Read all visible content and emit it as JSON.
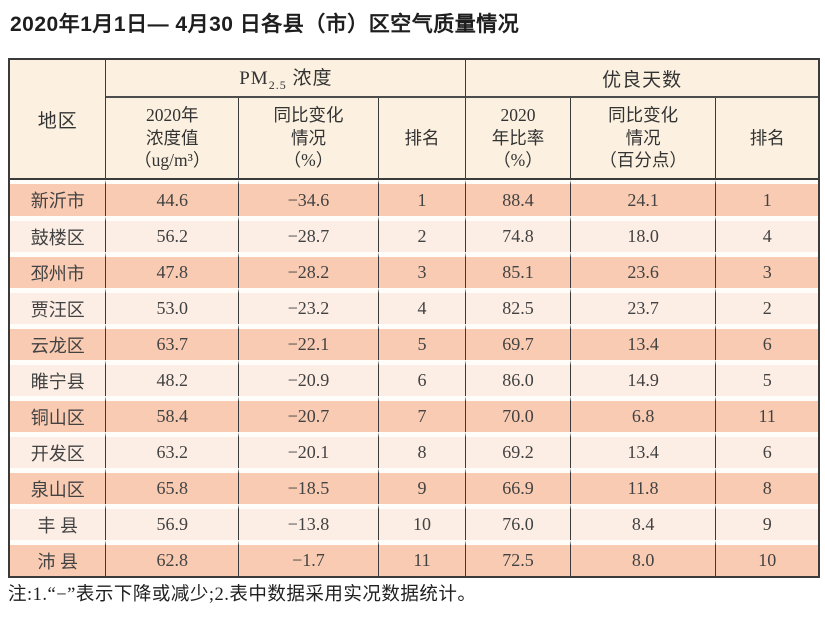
{
  "title": "2020年1月1日— 4月30 日各县（市）区空气质量情况",
  "table": {
    "region_header": "地区",
    "pm_group": {
      "prefix": "PM",
      "sub": "2.5",
      "suffix": " 浓度"
    },
    "days_group": "优良天数",
    "subheaders": [
      "2020年\n浓度值\n（ug/m³）",
      "同比变化\n情况\n（%）",
      "排名",
      "2020\n年比率\n（%）",
      "同比变化\n情况\n（百分点）",
      "排名"
    ],
    "columns": [
      "region",
      "pm_value",
      "pm_change",
      "pm_rank",
      "days_ratio",
      "days_change",
      "days_rank"
    ],
    "rows": [
      {
        "region": "新沂市",
        "pm_value": "44.6",
        "pm_change": "−34.6",
        "pm_rank": "1",
        "days_ratio": "88.4",
        "days_change": "24.1",
        "days_rank": "1"
      },
      {
        "region": "鼓楼区",
        "pm_value": "56.2",
        "pm_change": "−28.7",
        "pm_rank": "2",
        "days_ratio": "74.8",
        "days_change": "18.0",
        "days_rank": "4"
      },
      {
        "region": "邳州市",
        "pm_value": "47.8",
        "pm_change": "−28.2",
        "pm_rank": "3",
        "days_ratio": "85.1",
        "days_change": "23.6",
        "days_rank": "3"
      },
      {
        "region": "贾汪区",
        "pm_value": "53.0",
        "pm_change": "−23.2",
        "pm_rank": "4",
        "days_ratio": "82.5",
        "days_change": "23.7",
        "days_rank": "2"
      },
      {
        "region": "云龙区",
        "pm_value": "63.7",
        "pm_change": "−22.1",
        "pm_rank": "5",
        "days_ratio": "69.7",
        "days_change": "13.4",
        "days_rank": "6"
      },
      {
        "region": "睢宁县",
        "pm_value": "48.2",
        "pm_change": "−20.9",
        "pm_rank": "6",
        "days_ratio": "86.0",
        "days_change": "14.9",
        "days_rank": "5"
      },
      {
        "region": "铜山区",
        "pm_value": "58.4",
        "pm_change": "−20.7",
        "pm_rank": "7",
        "days_ratio": "70.0",
        "days_change": "6.8",
        "days_rank": "11"
      },
      {
        "region": "开发区",
        "pm_value": "63.2",
        "pm_change": "−20.1",
        "pm_rank": "8",
        "days_ratio": "69.2",
        "days_change": "13.4",
        "days_rank": "6"
      },
      {
        "region": "泉山区",
        "pm_value": "65.8",
        "pm_change": "−18.5",
        "pm_rank": "9",
        "days_ratio": "66.9",
        "days_change": "11.8",
        "days_rank": "8"
      },
      {
        "region": "丰 县",
        "pm_value": "56.9",
        "pm_change": "−13.8",
        "pm_rank": "10",
        "days_ratio": "76.0",
        "days_change": "8.4",
        "days_rank": "9"
      },
      {
        "region": "沛 县",
        "pm_value": "62.8",
        "pm_change": "−1.7",
        "pm_rank": "11",
        "days_ratio": "72.5",
        "days_change": "8.0",
        "days_rank": "10"
      }
    ]
  },
  "note": "注:1.“−”表示下降或减少;2.表中数据采用实况数据统计。",
  "colors": {
    "row_salmon": "#f8cbb2",
    "row_light": "#fdeee5",
    "header_bg": "#fcf1e0",
    "border": "#3b3b3b"
  }
}
